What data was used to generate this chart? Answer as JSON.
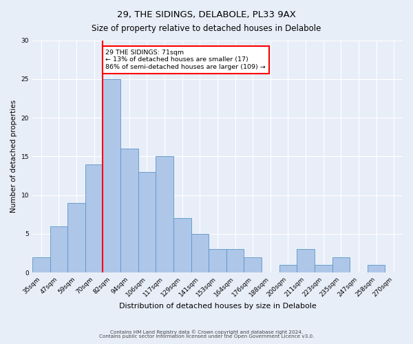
{
  "title1": "29, THE SIDINGS, DELABOLE, PL33 9AX",
  "title2": "Size of property relative to detached houses in Delabole",
  "xlabel": "Distribution of detached houses by size in Delabole",
  "ylabel": "Number of detached properties",
  "categories": [
    "35sqm",
    "47sqm",
    "59sqm",
    "70sqm",
    "82sqm",
    "94sqm",
    "106sqm",
    "117sqm",
    "129sqm",
    "141sqm",
    "153sqm",
    "164sqm",
    "176sqm",
    "188sqm",
    "200sqm",
    "211sqm",
    "223sqm",
    "235sqm",
    "247sqm",
    "258sqm",
    "270sqm"
  ],
  "values": [
    2,
    6,
    9,
    14,
    25,
    16,
    13,
    15,
    7,
    5,
    3,
    3,
    2,
    0,
    1,
    3,
    1,
    2,
    0,
    1,
    0
  ],
  "bar_color": "#aec6e8",
  "bar_edge_color": "#5a96c8",
  "redline_index": 3.5,
  "annotation_text": "29 THE SIDINGS: 71sqm\n← 13% of detached houses are smaller (17)\n86% of semi-detached houses are larger (109) →",
  "annotation_box_color": "white",
  "annotation_box_edge_color": "red",
  "ylim": [
    0,
    30
  ],
  "yticks": [
    0,
    5,
    10,
    15,
    20,
    25,
    30
  ],
  "footer1": "Contains HM Land Registry data © Crown copyright and database right 2024.",
  "footer2": "Contains public sector information licensed under the Open Government Licence v3.0.",
  "background_color": "#e8eef8",
  "grid_color": "white",
  "figwidth": 6.0,
  "figheight": 5.0,
  "dpi": 100
}
